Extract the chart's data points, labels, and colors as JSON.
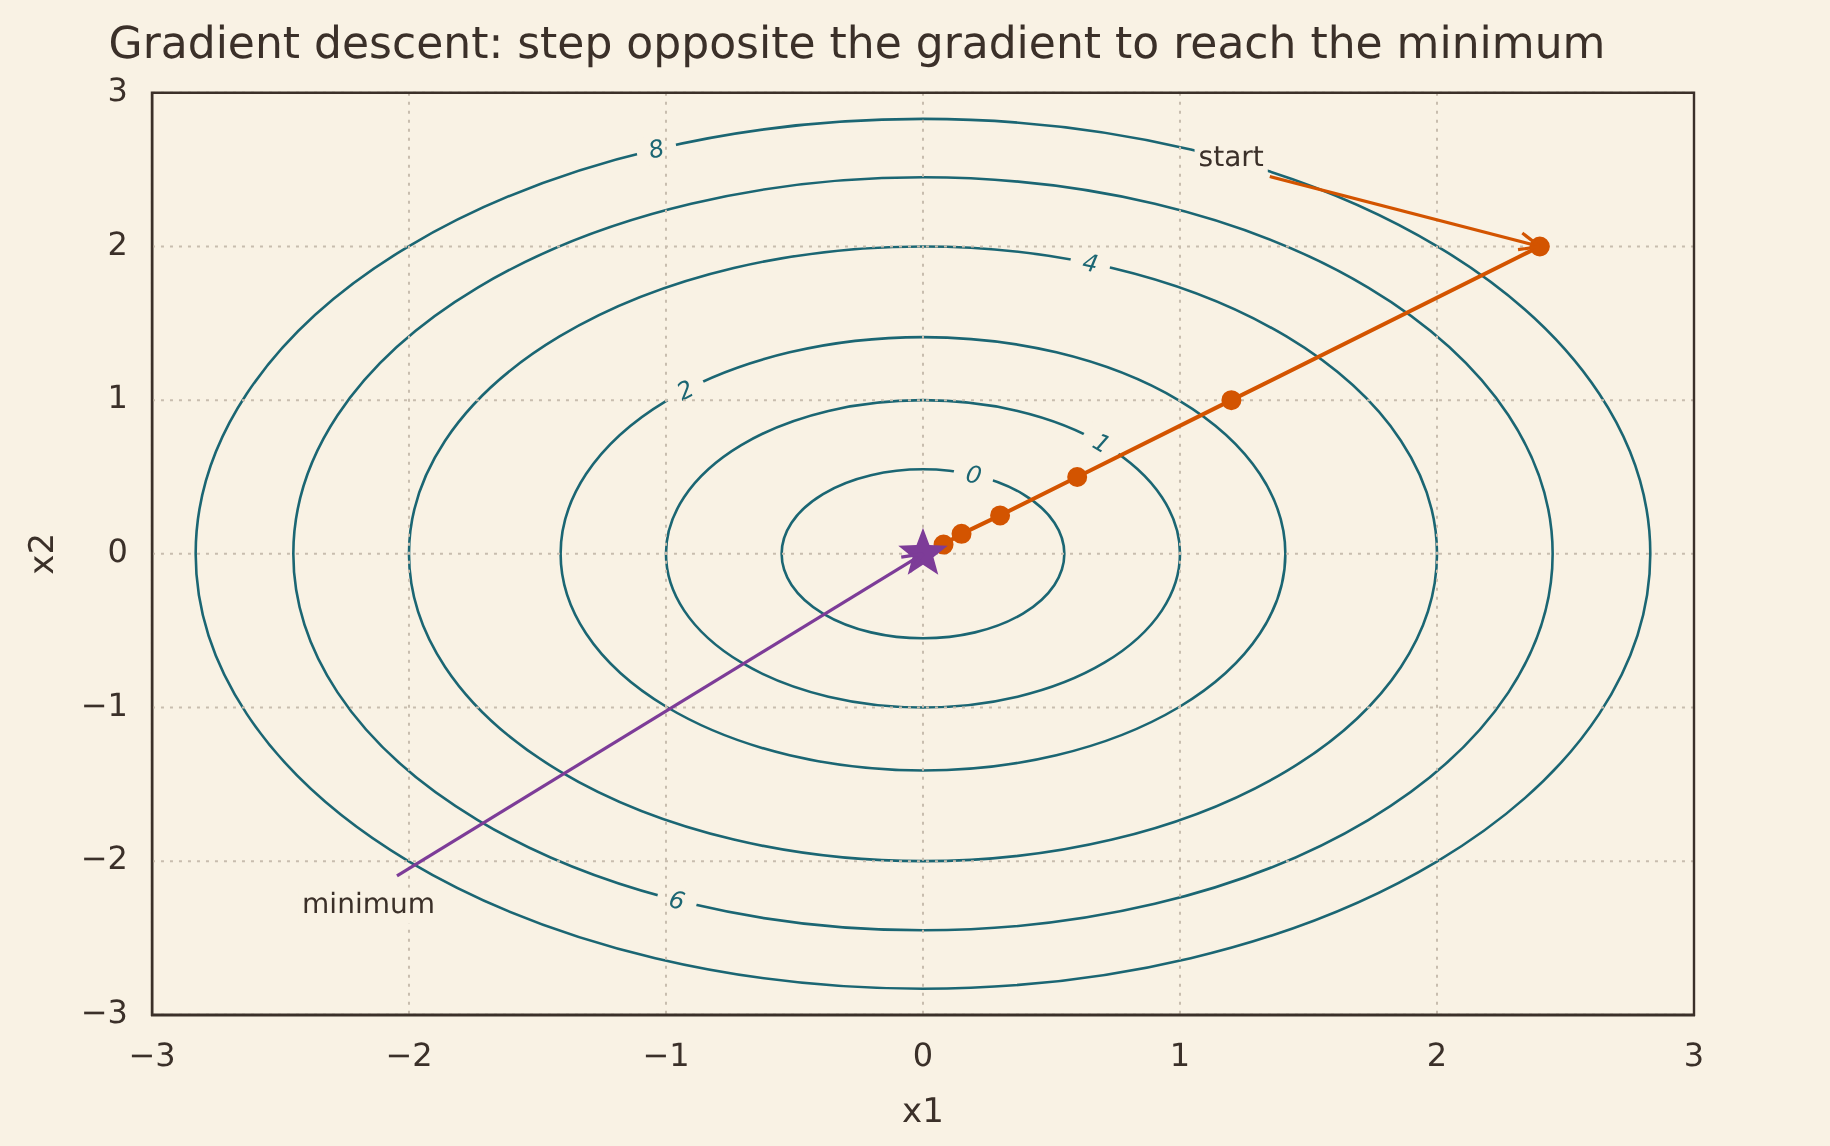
{
  "chart_data": {
    "type": "line",
    "title": "Gradient descent: step opposite the gradient to reach the minimum",
    "xlabel": "x1",
    "ylabel": "x2",
    "xlim": [
      -3,
      3
    ],
    "ylim": [
      -3,
      3
    ],
    "xticks": [
      {
        "value": -3,
        "label": "−3"
      },
      {
        "value": -2,
        "label": "−2"
      },
      {
        "value": -1,
        "label": "−1"
      },
      0,
      1,
      2,
      3
    ],
    "yticks": [
      {
        "value": -3,
        "label": "−3"
      },
      {
        "value": -2,
        "label": "−2"
      },
      {
        "value": -1,
        "label": "−1"
      },
      0,
      1,
      2,
      3
    ],
    "grid": true,
    "series": [
      {
        "marker": "circle",
        "color": "#d35400",
        "x": [
          2.4,
          1.2,
          0.6,
          0.3,
          0.15,
          0.08
        ],
        "values": [
          2,
          1,
          0.5,
          0.25,
          0.13,
          0.06
        ]
      },
      {
        "type": "scatter",
        "marker": "star",
        "color": "#7d3c98",
        "x": [
          0
        ],
        "values": [
          0
        ]
      }
    ],
    "annotations": [
      {
        "text": "start",
        "x": 2.4,
        "y": 2
      },
      {
        "text": "minimum",
        "x": 0,
        "y": 0
      },
      "0",
      "1",
      "2",
      "4",
      "6",
      "8"
    ]
  }
}
